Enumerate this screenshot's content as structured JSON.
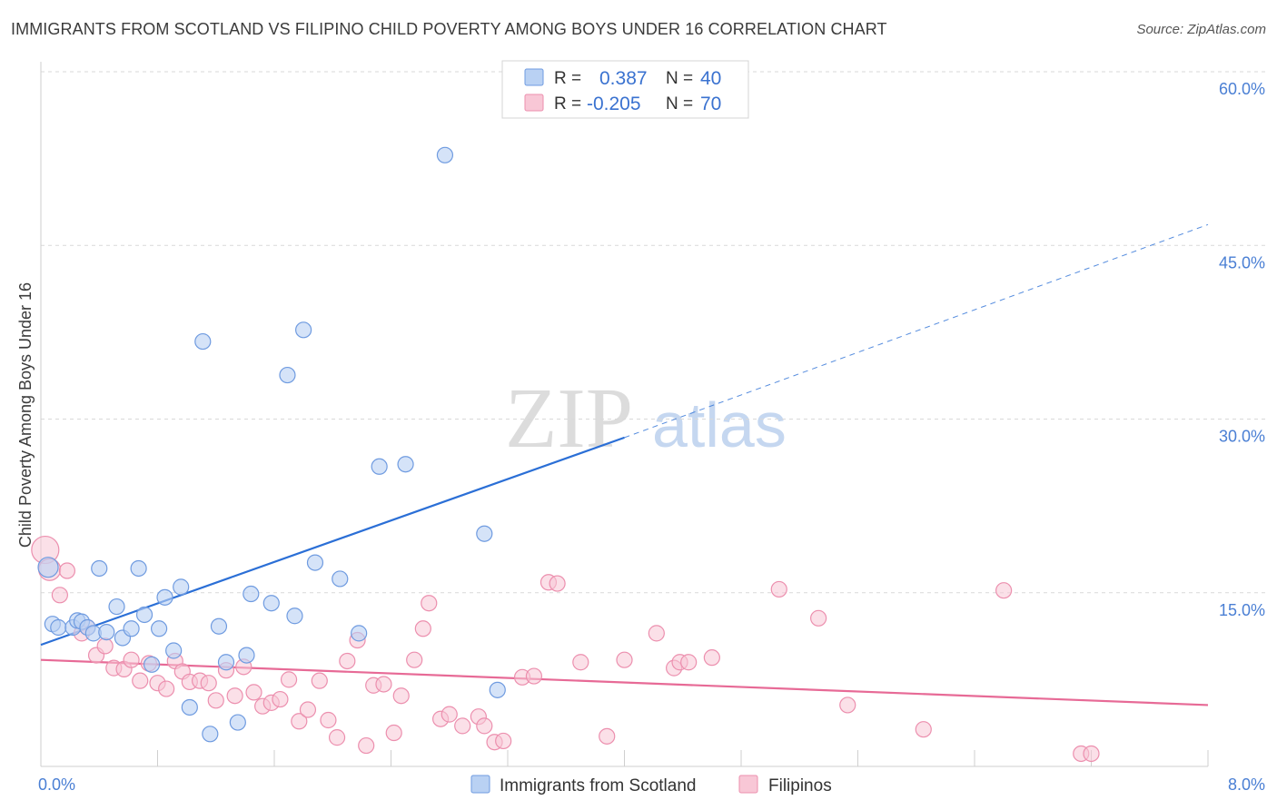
{
  "header": {
    "title": "IMMIGRANTS FROM SCOTLAND VS FILIPINO CHILD POVERTY AMONG BOYS UNDER 16 CORRELATION CHART",
    "source": "Source: ZipAtlas.com"
  },
  "watermark": {
    "zip": "ZIP",
    "atlas": "atlas"
  },
  "legend": {
    "r_label": "R =",
    "n_label": "N =",
    "series1": {
      "r": "0.387",
      "n": "40"
    },
    "series2": {
      "r": "-0.205",
      "n": "70"
    }
  },
  "bottom_legend": {
    "series1": "Immigrants from Scotland",
    "series2": "Filipinos"
  },
  "colors": {
    "scotland_fill": "#b9d1f3",
    "scotland_stroke": "#6f9be0",
    "scotland_line": "#2b6fd6",
    "filipino_fill": "#f8c7d6",
    "filipino_stroke": "#ec8fae",
    "filipino_line": "#e76a96",
    "axis_label": "#4a7fd4"
  },
  "chart_data": {
    "type": "scatter",
    "title": "IMMIGRANTS FROM SCOTLAND VS FILIPINO CHILD POVERTY AMONG BOYS UNDER 16 CORRELATION CHART",
    "xlabel": "",
    "ylabel": "Child Poverty Among Boys Under 16",
    "xlim": [
      0,
      8
    ],
    "ylim": [
      0,
      60
    ],
    "x_tick_labels": [
      "0.0%",
      "8.0%"
    ],
    "y_ticks": [
      15,
      30,
      45,
      60
    ],
    "y_tick_labels": [
      "15.0%",
      "30.0%",
      "45.0%",
      "60.0%"
    ],
    "series": [
      {
        "name": "Immigrants from Scotland",
        "points": [
          [
            0.05,
            17.2
          ],
          [
            0.08,
            12.3
          ],
          [
            0.12,
            12.0
          ],
          [
            0.22,
            12.0
          ],
          [
            0.25,
            12.6
          ],
          [
            0.28,
            12.5
          ],
          [
            0.32,
            12.0
          ],
          [
            0.36,
            11.5
          ],
          [
            0.4,
            17.1
          ],
          [
            0.45,
            11.6
          ],
          [
            0.52,
            13.8
          ],
          [
            0.56,
            11.1
          ],
          [
            0.62,
            11.9
          ],
          [
            0.67,
            17.1
          ],
          [
            0.71,
            13.1
          ],
          [
            0.76,
            8.8
          ],
          [
            0.81,
            11.9
          ],
          [
            0.85,
            14.6
          ],
          [
            0.91,
            10.0
          ],
          [
            0.96,
            15.5
          ],
          [
            1.02,
            5.1
          ],
          [
            1.11,
            36.7
          ],
          [
            1.16,
            2.8
          ],
          [
            1.22,
            12.1
          ],
          [
            1.27,
            9.0
          ],
          [
            1.35,
            3.8
          ],
          [
            1.41,
            9.6
          ],
          [
            1.44,
            14.9
          ],
          [
            1.58,
            14.1
          ],
          [
            1.69,
            33.8
          ],
          [
            1.74,
            13.0
          ],
          [
            1.8,
            37.7
          ],
          [
            1.88,
            17.6
          ],
          [
            2.05,
            16.2
          ],
          [
            2.18,
            11.5
          ],
          [
            2.32,
            25.9
          ],
          [
            2.5,
            26.1
          ],
          [
            2.77,
            52.8
          ],
          [
            3.04,
            20.1
          ],
          [
            3.13,
            6.6
          ]
        ],
        "trend": {
          "x_solid": [
            0,
            4.0
          ],
          "y_solid": [
            10.5,
            28.4
          ],
          "x_dashed": [
            4.0,
            8.0
          ],
          "y_dashed": [
            28.4,
            46.8
          ]
        }
      },
      {
        "name": "Filipinos",
        "points": [
          [
            0.03,
            18.7
          ],
          [
            0.06,
            17.0
          ],
          [
            0.13,
            14.8
          ],
          [
            0.18,
            16.9
          ],
          [
            0.28,
            11.5
          ],
          [
            0.32,
            12.0
          ],
          [
            0.38,
            9.6
          ],
          [
            0.44,
            10.4
          ],
          [
            0.5,
            8.5
          ],
          [
            0.57,
            8.4
          ],
          [
            0.62,
            9.2
          ],
          [
            0.68,
            7.4
          ],
          [
            0.74,
            8.9
          ],
          [
            0.8,
            7.2
          ],
          [
            0.86,
            6.7
          ],
          [
            0.92,
            9.1
          ],
          [
            0.97,
            8.2
          ],
          [
            1.02,
            7.3
          ],
          [
            1.09,
            7.4
          ],
          [
            1.15,
            7.2
          ],
          [
            1.2,
            5.7
          ],
          [
            1.27,
            8.3
          ],
          [
            1.33,
            6.1
          ],
          [
            1.39,
            8.6
          ],
          [
            1.46,
            6.4
          ],
          [
            1.52,
            5.2
          ],
          [
            1.58,
            5.5
          ],
          [
            1.64,
            5.8
          ],
          [
            1.7,
            7.5
          ],
          [
            1.77,
            3.9
          ],
          [
            1.83,
            4.9
          ],
          [
            1.91,
            7.4
          ],
          [
            1.97,
            4.0
          ],
          [
            2.03,
            2.5
          ],
          [
            2.1,
            9.1
          ],
          [
            2.17,
            10.9
          ],
          [
            2.23,
            1.8
          ],
          [
            2.28,
            7.0
          ],
          [
            2.35,
            7.1
          ],
          [
            2.42,
            2.9
          ],
          [
            2.47,
            6.1
          ],
          [
            2.56,
            9.2
          ],
          [
            2.62,
            11.9
          ],
          [
            2.66,
            14.1
          ],
          [
            2.74,
            4.1
          ],
          [
            2.8,
            4.5
          ],
          [
            2.89,
            3.5
          ],
          [
            3.0,
            4.3
          ],
          [
            3.04,
            3.5
          ],
          [
            3.11,
            2.1
          ],
          [
            3.17,
            2.2
          ],
          [
            3.3,
            7.7
          ],
          [
            3.38,
            7.8
          ],
          [
            3.48,
            15.9
          ],
          [
            3.54,
            15.8
          ],
          [
            3.7,
            9.0
          ],
          [
            3.88,
            2.6
          ],
          [
            4.0,
            9.2
          ],
          [
            4.22,
            11.5
          ],
          [
            4.34,
            8.5
          ],
          [
            4.38,
            9.0
          ],
          [
            4.44,
            9.0
          ],
          [
            4.6,
            9.4
          ],
          [
            5.06,
            15.3
          ],
          [
            5.33,
            12.8
          ],
          [
            5.53,
            5.3
          ],
          [
            6.05,
            3.2
          ],
          [
            6.6,
            15.2
          ],
          [
            7.13,
            1.1
          ],
          [
            7.2,
            1.1
          ]
        ],
        "trend": {
          "x_solid": [
            0,
            8.0
          ],
          "y_solid": [
            9.2,
            5.3
          ]
        }
      }
    ]
  }
}
